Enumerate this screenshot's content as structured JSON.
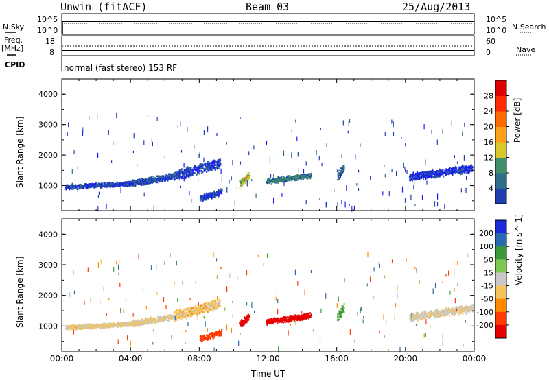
{
  "header": {
    "station": "Unwin (fitACF)",
    "beam": "Beam 03",
    "date": "25/Aug/2013"
  },
  "side_labels": {
    "nsky": "N.Sky",
    "nsearch": "N.Search",
    "freq_top": "Freq.",
    "freq_units": "[MHz]",
    "nave": "Nave",
    "cpid": "CPID"
  },
  "small_axes": {
    "noise_left_ticks": [
      "10^5",
      "10^0"
    ],
    "noise_right_ticks": [
      "10^5",
      "10^0"
    ],
    "freq_left_ticks": [
      "18",
      "8"
    ],
    "nave_right_ticks": [
      "60",
      "0"
    ]
  },
  "cpid_text": "normal (fast stereo) 153 RF",
  "x_axis": {
    "label": "Time UT",
    "ticks": [
      "00:00",
      "04:00",
      "08:00",
      "12:00",
      "16:00",
      "20:00",
      "00:00"
    ]
  },
  "colors": {
    "power": [
      "#1a1aff",
      "#1f3fb0",
      "#2f6e8a",
      "#3f8f6a",
      "#d9c82a",
      "#ff9f1a",
      "#ff6a00",
      "#ff2a00",
      "#dd0000"
    ],
    "velocity_neg": "#ff2a00",
    "velocity_pos": "#1a3aff"
  },
  "chart_data": [
    {
      "type": "heatmap",
      "title": "",
      "xlabel": "",
      "ylabel": "Slant Range [km]",
      "x_range_hours": [
        0,
        24
      ],
      "ylim": [
        180,
        4500
      ],
      "y_ticks": [
        1000,
        2000,
        3000,
        4000
      ],
      "colorbar": {
        "label": "Power [dB]",
        "ticks": [
          "4",
          "8",
          "12",
          "16",
          "20",
          "24",
          "28"
        ],
        "range": [
          0,
          30
        ]
      }
    },
    {
      "type": "heatmap",
      "title": "",
      "xlabel": "Time UT",
      "ylabel": "Slant Range [km]",
      "x_range_hours": [
        0,
        24
      ],
      "ylim": [
        180,
        4500
      ],
      "y_ticks": [
        1000,
        2000,
        3000,
        4000
      ],
      "colorbar": {
        "label": "Velocity [m s^-1]",
        "ticks": [
          "200",
          "100",
          "50",
          "15",
          "-15",
          "-50",
          "-100",
          "-200"
        ],
        "range": [
          -250,
          250
        ]
      }
    }
  ],
  "echo_bands": [
    {
      "t": [
        0.2,
        4.0
      ],
      "r": [
        930,
        1130
      ],
      "v": -10,
      "p": 5
    },
    {
      "t": [
        4.0,
        6.5
      ],
      "r": [
        1020,
        1400
      ],
      "v": -10,
      "p": 6
    },
    {
      "t": [
        6.5,
        9.2
      ],
      "r": [
        1200,
        1900
      ],
      "v": -20,
      "p": 5
    },
    {
      "t": [
        8.0,
        9.3
      ],
      "r": [
        520,
        900
      ],
      "v": -90,
      "p": 5
    },
    {
      "t": [
        10.3,
        10.9
      ],
      "r": [
        950,
        1450
      ],
      "v": -180,
      "p": 14
    },
    {
      "t": [
        11.9,
        14.5
      ],
      "r": [
        1100,
        1420
      ],
      "v": -170,
      "p": 10
    },
    {
      "t": [
        16.0,
        16.4
      ],
      "r": [
        1150,
        1750
      ],
      "v": 40,
      "p": 8
    },
    {
      "t": [
        20.2,
        23.9
      ],
      "r": [
        1200,
        1700
      ],
      "v": -5,
      "p": 4
    }
  ]
}
